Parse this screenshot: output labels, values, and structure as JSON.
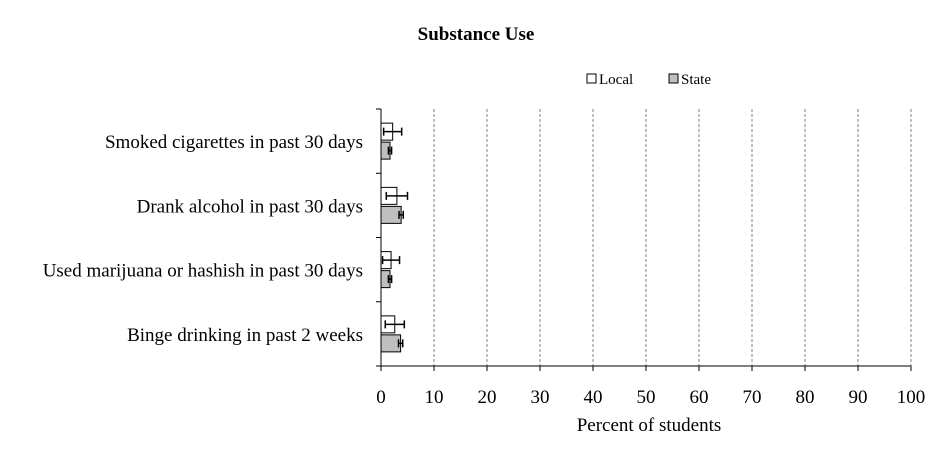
{
  "chart_data": {
    "type": "bar",
    "orientation": "horizontal",
    "title": "Substance Use",
    "xlabel": "Percent of students",
    "ylabel": "",
    "xlim": [
      0,
      100
    ],
    "xticks": [
      "0",
      "10",
      "20",
      "30",
      "40",
      "50",
      "60",
      "70",
      "80",
      "90",
      "100"
    ],
    "grid": "vertical dashed",
    "legend_position": "top-right",
    "categories": [
      "Smoked cigarettes in past 30 days",
      "Drank alcohol in past 30 days",
      "Used marijuana or hashish in past 30 days",
      "Binge drinking in past 2 weeks"
    ],
    "series": [
      {
        "name": "Local",
        "color": "#ffffff",
        "values": [
          2.2,
          3.0,
          1.9,
          2.6
        ],
        "error_low": [
          0.5,
          1.0,
          0.3,
          0.8
        ],
        "error_high": [
          3.9,
          5.0,
          3.5,
          4.4
        ]
      },
      {
        "name": "State",
        "color": "#bfbfbf",
        "values": [
          1.7,
          3.8,
          1.7,
          3.7
        ],
        "error_low": [
          1.4,
          3.4,
          1.4,
          3.3
        ],
        "error_high": [
          2.0,
          4.2,
          2.0,
          4.1
        ]
      }
    ]
  }
}
